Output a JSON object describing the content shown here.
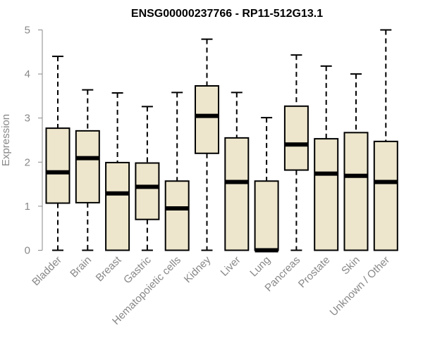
{
  "chart_data": {
    "type": "boxplot",
    "title": "ENSG00000237766 - RP11-512G13.1",
    "ylabel": "Expression",
    "ylim": [
      0,
      5
    ],
    "yticks": [
      0,
      1,
      2,
      3,
      4,
      5
    ],
    "box_fill": "#ede6cc",
    "grid": false,
    "categories": [
      "Bladder",
      "Brain",
      "Breast",
      "Gastric",
      "Hematopoietic cells",
      "Kidney",
      "Liver",
      "Lung",
      "Pancreas",
      "Prostate",
      "Skin",
      "Unknown / Other"
    ],
    "boxes": [
      {
        "min": 0,
        "q1": 1.07,
        "median": 1.77,
        "q3": 2.77,
        "max": 4.4
      },
      {
        "min": 0,
        "q1": 1.08,
        "median": 2.09,
        "q3": 2.71,
        "max": 3.64
      },
      {
        "min": 0,
        "q1": 0,
        "median": 1.29,
        "q3": 1.99,
        "max": 3.57
      },
      {
        "min": 0,
        "q1": 0.7,
        "median": 1.44,
        "q3": 1.98,
        "max": 3.26
      },
      {
        "min": 0,
        "q1": 0,
        "median": 0.95,
        "q3": 1.57,
        "max": 3.58
      },
      {
        "min": 0,
        "q1": 2.2,
        "median": 3.05,
        "q3": 3.73,
        "max": 4.79
      },
      {
        "min": 0,
        "q1": 0,
        "median": 1.55,
        "q3": 2.55,
        "max": 3.58
      },
      {
        "min": 0,
        "q1": 0,
        "median": 0,
        "q3": 1.57,
        "max": 3.01
      },
      {
        "min": 0,
        "q1": 1.82,
        "median": 2.4,
        "q3": 3.27,
        "max": 4.43
      },
      {
        "min": 0,
        "q1": 0,
        "median": 1.74,
        "q3": 2.53,
        "max": 4.18
      },
      {
        "min": 0,
        "q1": 0,
        "median": 1.69,
        "q3": 2.67,
        "max": 4.0
      },
      {
        "min": 0,
        "q1": 0,
        "median": 1.55,
        "q3": 2.47,
        "max": 5.0
      }
    ]
  }
}
